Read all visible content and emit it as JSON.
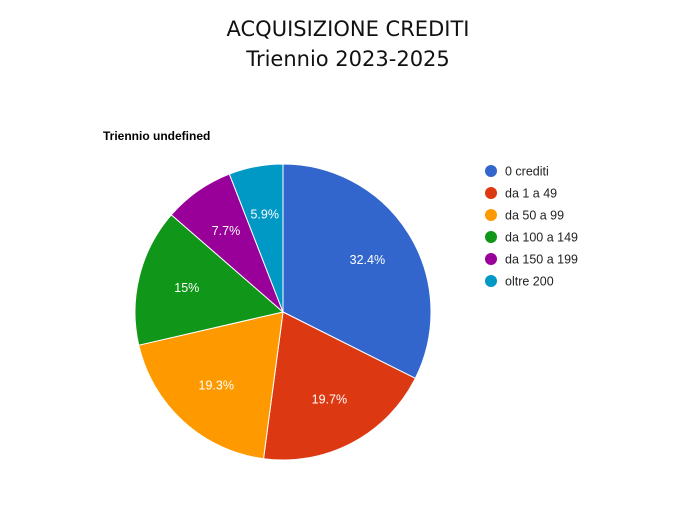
{
  "header": {
    "title_line1": "ACQUISIZIONE CREDITI",
    "title_line2": "Triennio 2023-2025"
  },
  "chart_data": {
    "type": "pie",
    "title": "Triennio undefined",
    "legend_position": "right",
    "slices": [
      {
        "label": "0 crediti",
        "value": 32.4,
        "display": "32.4%",
        "color": "#3366cc"
      },
      {
        "label": "da 1 a 49",
        "value": 19.7,
        "display": "19.7%",
        "color": "#dc3912"
      },
      {
        "label": "da 50 a 99",
        "value": 19.3,
        "display": "19.3%",
        "color": "#ff9900"
      },
      {
        "label": "da 100 a 149",
        "value": 15.0,
        "display": "15%",
        "color": "#109618"
      },
      {
        "label": "da 150 a 199",
        "value": 7.7,
        "display": "7.7%",
        "color": "#990099"
      },
      {
        "label": "oltre 200",
        "value": 5.9,
        "display": "5.9%",
        "color": "#0099c6"
      }
    ]
  }
}
